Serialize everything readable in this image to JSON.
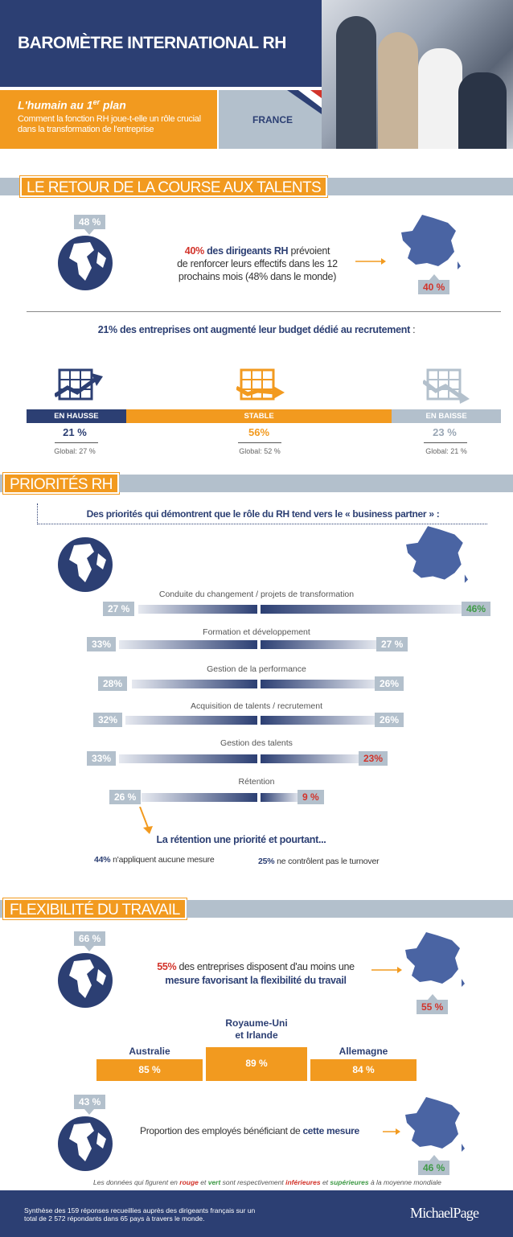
{
  "header": {
    "title": "BAROMÈTRE INTERNATIONAL RH",
    "subtitle_main": "L'humain au 1",
    "subtitle_sup": "er",
    "subtitle_plan": " plan",
    "subtitle_desc": "Comment la fonction RH joue-t-elle un rôle crucial dans la transformation de l'entreprise",
    "country": "FRANCE"
  },
  "section1": {
    "title": "LE RETOUR DE LA COURSE AUX TALENTS",
    "world_pct": "48 %",
    "france_pct": "40 %",
    "text_pct": "40%",
    "text_bold": " des dirigeants RH",
    "text_rest1": " prévoient",
    "text_line2": "de renforcer leurs effectifs dans les 12",
    "text_line3": "prochains mois (48% dans le monde)",
    "budget_bold": "21% des entreprises ont augmenté leur budget dédié au recrutement",
    "budget_tail": " :",
    "segments": [
      {
        "label": "EN HAUSSE",
        "pct": "21 %",
        "global": "Global: 27 %"
      },
      {
        "label": "STABLE",
        "pct": "56%",
        "global": "Global: 52 %"
      },
      {
        "label": "EN BAISSE",
        "pct": "23 %",
        "global": "Global: 21 %"
      }
    ],
    "segment_values": [
      21,
      56,
      23
    ]
  },
  "section2": {
    "title": "PRIORITÉS RH",
    "intro": "Des priorités qui démontrent que le rôle du RH tend vers le « business partner » :",
    "items": [
      {
        "label": "Conduite du changement / projets de transformation",
        "world": "27 %",
        "france": "46%"
      },
      {
        "label": "Formation et développement",
        "world": "33%",
        "france": "27 %"
      },
      {
        "label": "Gestion de la performance",
        "world": "28%",
        "france": "26%"
      },
      {
        "label": "Acquisition de talents / recrutement",
        "world": "32%",
        "france": "26%"
      },
      {
        "label": "Gestion des talents",
        "world": "33%",
        "france": "23%"
      },
      {
        "label": "Rétention",
        "world": "26 %",
        "france": "9 %"
      }
    ],
    "retention_title": "La rétention une priorité et pourtant...",
    "note1_pct": "44%",
    "note1_text": " n'appliquent aucune mesure",
    "note2_pct": "25%",
    "note2_text": " ne contrôlent pas le turnover"
  },
  "section3": {
    "title": "FLEXIBILITÉ DU TRAVAIL",
    "world_pct": "66 %",
    "france_pct": "55 %",
    "text_pct": "55%",
    "text_rest1": " des entreprises disposent d'au moins une",
    "text_bold": "mesure favorisant la flexibilité du travail",
    "countries": [
      {
        "name": "Australie",
        "pct": "85 %"
      },
      {
        "name": "Royaume-Uni et Irlande",
        "pct": "89 %"
      },
      {
        "name": "Allemagne",
        "pct": "84 %"
      }
    ],
    "world_pct2": "43 %",
    "france_pct2": "46 %",
    "proportion_text": "Proportion des employés bénéficiant de ",
    "proportion_bold": "cette mesure"
  },
  "legend": {
    "p1": "Les données qui figurent en ",
    "rouge": "rouge",
    "p2": " et ",
    "vert": "vert",
    "p3": " sont respectivement ",
    "inferieures": "inférieures",
    "p4": " et ",
    "superieures": "supérieures",
    "p5": " à la moyenne mondiale"
  },
  "footer": {
    "text": "Synthèse des 159 réponses recueillies auprès des dirigeants français sur un total de 2 572 répondants dans 65 pays à travers le monde.",
    "brand": "MichaelPage"
  },
  "colors": {
    "navy": "#2c3f73",
    "orange": "#f29a1f",
    "slate": "#b3c0cc",
    "red": "#d2332a",
    "green": "#3f9a46"
  }
}
